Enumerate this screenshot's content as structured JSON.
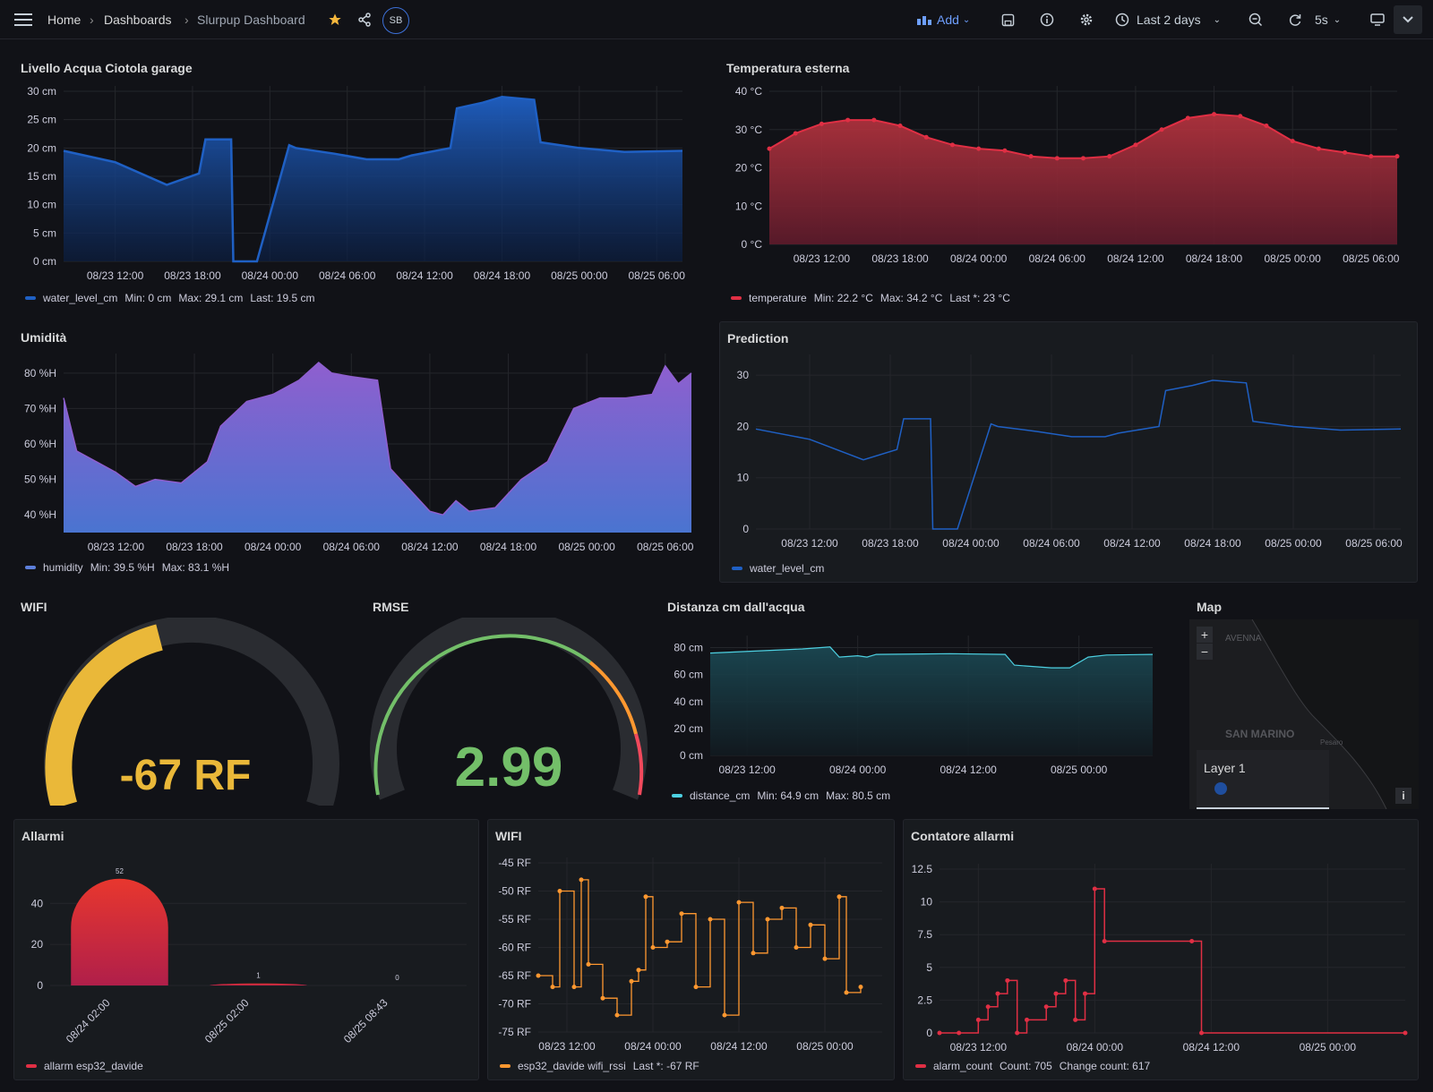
{
  "topbar": {
    "breadcrumb": [
      "Home",
      "Dashboards",
      "Slurpup Dashboard"
    ],
    "avatar": "SB",
    "add_label": "Add",
    "time_range": "Last 2 days",
    "refresh": "5s"
  },
  "panels": {
    "water": {
      "title": "Livello Acqua Ciotola garage",
      "legend": {
        "series": "water_level_cm",
        "stats": [
          "Min: 0 cm",
          "Max: 29.1 cm",
          "Last: 19.5 cm"
        ]
      },
      "color": "#1f60c4"
    },
    "temperature": {
      "title": "Temperatura esterna",
      "legend": {
        "series": "temperature",
        "stats": [
          "Min: 22.2 °C",
          "Max: 34.2 °C",
          "Last *: 23 °C"
        ]
      },
      "color": "#e02f44"
    },
    "humidity": {
      "title": "Umidità",
      "legend": {
        "series": "humidity",
        "stats": [
          "Min: 39.5 %H",
          "Max: 83.1 %H"
        ]
      },
      "color": "#8f5fcf"
    },
    "prediction": {
      "title": "Prediction",
      "legend": {
        "series": "water_level_cm",
        "stats": []
      },
      "color": "#1f60c4"
    },
    "wifi_gauge": {
      "title": "WIFI",
      "value": "-67 RF",
      "color": "#eab839"
    },
    "rmse_gauge": {
      "title": "RMSE",
      "value": "2.99",
      "color": "#73bf69"
    },
    "distance": {
      "title": "Distanza cm dall'acqua",
      "legend": {
        "series": "distance_cm",
        "stats": [
          "Min: 64.9 cm",
          "Max: 80.5 cm"
        ]
      },
      "color": "#4dd0e1"
    },
    "map": {
      "title": "Map",
      "layer_label": "Layer 1",
      "labels": [
        "AVENNA",
        "SAN MARINO",
        "Pesaro"
      ]
    },
    "alarms": {
      "title": "Allarmi",
      "legend": {
        "series": "allarm esp32_davide"
      },
      "color": "#e02f44"
    },
    "wifi_series": {
      "title": "WIFI",
      "legend": {
        "series": "esp32_davide wifi_rssi",
        "stats": [
          "Last *: -67 RF"
        ]
      },
      "color": "#ff9830"
    },
    "alarm_counter": {
      "title": "Contatore allarmi",
      "legend": {
        "series": "alarm_count",
        "stats": [
          "Count: 705",
          "Change count: 617"
        ]
      },
      "color": "#e02f44"
    }
  },
  "chart_data": [
    {
      "id": "water",
      "type": "area",
      "ylabel_ticks": [
        "0 cm",
        "5 cm",
        "10 cm",
        "15 cm",
        "20 cm",
        "25 cm",
        "30 cm"
      ],
      "ylim": [
        0,
        30
      ],
      "x_ticks": [
        "08/23 12:00",
        "08/23 18:00",
        "08/24 00:00",
        "08/24 06:00",
        "08/24 12:00",
        "08/24 18:00",
        "08/25 00:00",
        "08/25 06:00"
      ],
      "x": [
        "08/23 08:00",
        "08/23 12:00",
        "08/23 16:00",
        "08/23 18:30",
        "08/23 19:00",
        "08/23 21:00",
        "08/23 21:10",
        "08/23 23:00",
        "08/24 01:30",
        "08/24 02:00",
        "08/24 05:00",
        "08/24 07:30",
        "08/24 10:00",
        "08/24 11:00",
        "08/24 14:00",
        "08/24 14:30",
        "08/24 16:30",
        "08/24 18:00",
        "08/24 20:30",
        "08/24 21:00",
        "08/25 00:00",
        "08/25 03:30",
        "08/25 08:00"
      ],
      "values": [
        19.5,
        17.5,
        13.5,
        15.5,
        21.5,
        21.5,
        0,
        0,
        20.5,
        20,
        19,
        18,
        18,
        18.7,
        20,
        27,
        28,
        29,
        28.5,
        21,
        20,
        19.3,
        19.5
      ]
    },
    {
      "id": "temperature",
      "type": "area",
      "ylabel_ticks": [
        "0 °C",
        "10 °C",
        "20 °C",
        "30 °C",
        "40 °C"
      ],
      "ylim": [
        0,
        40
      ],
      "x_ticks": [
        "08/23 12:00",
        "08/23 18:00",
        "08/24 00:00",
        "08/24 06:00",
        "08/24 12:00",
        "08/24 18:00",
        "08/25 00:00",
        "08/25 06:00"
      ],
      "x": [
        "08/23 08:00",
        "08/23 10:00",
        "08/23 12:00",
        "08/23 14:00",
        "08/23 16:00",
        "08/23 18:00",
        "08/23 20:00",
        "08/23 22:00",
        "08/24 00:00",
        "08/24 02:00",
        "08/24 04:00",
        "08/24 06:00",
        "08/24 08:00",
        "08/24 10:00",
        "08/24 12:00",
        "08/24 14:00",
        "08/24 16:00",
        "08/24 18:00",
        "08/24 20:00",
        "08/24 22:00",
        "08/25 00:00",
        "08/25 02:00",
        "08/25 04:00",
        "08/25 06:00",
        "08/25 08:00"
      ],
      "values": [
        25,
        29,
        31.5,
        32.5,
        32.5,
        31,
        28,
        26,
        25,
        24.5,
        23,
        22.5,
        22.5,
        23,
        26,
        30,
        33,
        34,
        33.5,
        31,
        27,
        25,
        24,
        23,
        23
      ]
    },
    {
      "id": "humidity",
      "type": "area",
      "ylabel_ticks": [
        "40 %H",
        "50 %H",
        "60 %H",
        "70 %H",
        "80 %H"
      ],
      "ylim": [
        35,
        84
      ],
      "x_ticks": [
        "08/23 12:00",
        "08/23 18:00",
        "08/24 00:00",
        "08/24 06:00",
        "08/24 12:00",
        "08/24 18:00",
        "08/25 00:00",
        "08/25 06:00"
      ],
      "x": [
        "08/23 08:00",
        "08/23 09:00",
        "08/23 10:30",
        "08/23 12:00",
        "08/23 13:30",
        "08/23 15:00",
        "08/23 17:00",
        "08/23 19:00",
        "08/23 20:00",
        "08/23 22:00",
        "08/24 00:00",
        "08/24 02:00",
        "08/24 03:30",
        "08/24 04:30",
        "08/24 06:00",
        "08/24 08:00",
        "08/24 09:00",
        "08/24 10:30",
        "08/24 12:00",
        "08/24 13:00",
        "08/24 14:00",
        "08/24 15:00",
        "08/24 17:00",
        "08/24 19:00",
        "08/24 21:00",
        "08/24 23:00",
        "08/25 01:00",
        "08/25 03:00",
        "08/25 05:00",
        "08/25 06:00",
        "08/25 07:00",
        "08/25 08:00"
      ],
      "values": [
        73,
        58,
        55,
        52,
        48,
        50,
        49,
        55,
        65,
        72,
        74,
        78,
        83,
        80,
        79,
        78,
        53,
        47,
        41,
        40,
        44,
        41,
        42,
        50,
        55,
        70,
        73,
        73,
        74,
        82,
        77,
        80
      ]
    },
    {
      "id": "prediction",
      "type": "line",
      "ylabel_ticks": [
        "0",
        "10",
        "20",
        "30"
      ],
      "ylim": [
        0,
        33
      ],
      "x_ticks": [
        "08/23 12:00",
        "08/23 18:00",
        "08/24 00:00",
        "08/24 06:00",
        "08/24 12:00",
        "08/24 18:00",
        "08/25 00:00",
        "08/25 06:00"
      ],
      "x": [
        "08/23 08:00",
        "08/23 12:00",
        "08/23 16:00",
        "08/23 18:30",
        "08/23 19:00",
        "08/23 21:00",
        "08/23 21:10",
        "08/23 23:00",
        "08/24 01:30",
        "08/24 02:00",
        "08/24 05:00",
        "08/24 07:30",
        "08/24 10:00",
        "08/24 11:00",
        "08/24 14:00",
        "08/24 14:30",
        "08/24 16:30",
        "08/24 18:00",
        "08/24 20:30",
        "08/24 21:00",
        "08/25 00:00",
        "08/25 03:30",
        "08/25 08:00"
      ],
      "values": [
        19.5,
        17.5,
        13.5,
        15.5,
        21.5,
        21.5,
        0,
        0,
        20.5,
        20,
        19,
        18,
        18,
        18.7,
        20,
        27,
        28,
        29,
        28.5,
        21,
        20,
        19.3,
        19.5
      ]
    },
    {
      "id": "distance",
      "type": "area",
      "ylabel_ticks": [
        "0 cm",
        "20 cm",
        "40 cm",
        "60 cm",
        "80 cm"
      ],
      "ylim": [
        0,
        85
      ],
      "x_ticks": [
        "08/23 12:00",
        "08/24 00:00",
        "08/24 12:00",
        "08/25 00:00"
      ],
      "x": [
        "08/23 08:00",
        "08/23 18:00",
        "08/23 21:00",
        "08/23 22:00",
        "08/24 00:00",
        "08/24 01:00",
        "08/24 02:00",
        "08/24 10:00",
        "08/24 16:00",
        "08/24 17:00",
        "08/24 21:00",
        "08/24 23:00",
        "08/25 01:00",
        "08/25 03:00",
        "08/25 08:00"
      ],
      "values": [
        76,
        79,
        80.5,
        73,
        74,
        73,
        75,
        75.5,
        75,
        67,
        65,
        65,
        73,
        74.5,
        75
      ]
    },
    {
      "id": "alarms",
      "type": "bar",
      "categories": [
        "08/24 02:00",
        "08/25 02:00",
        "08/25 08:43"
      ],
      "values": [
        52,
        1,
        0
      ],
      "ylabel_ticks": [
        "0",
        "20",
        "40"
      ],
      "ylim": [
        0,
        58
      ]
    },
    {
      "id": "wifi_series",
      "type": "line",
      "ylabel_ticks": [
        "-75 RF",
        "-70 RF",
        "-65 RF",
        "-60 RF",
        "-55 RF",
        "-50 RF",
        "-45 RF"
      ],
      "ylim": [
        -75,
        -45
      ],
      "x_ticks": [
        "08/23 12:00",
        "08/24 00:00",
        "08/24 12:00",
        "08/25 00:00"
      ],
      "x": [
        "08/23 08:00",
        "08/23 10:00",
        "08/23 11:00",
        "08/23 13:00",
        "08/23 14:00",
        "08/23 15:00",
        "08/23 17:00",
        "08/23 19:00",
        "08/23 21:00",
        "08/23 22:00",
        "08/23 23:00",
        "08/24 00:00",
        "08/24 02:00",
        "08/24 04:00",
        "08/24 06:00",
        "08/24 08:00",
        "08/24 10:00",
        "08/24 12:00",
        "08/24 14:00",
        "08/24 16:00",
        "08/24 18:00",
        "08/24 20:00",
        "08/24 22:00",
        "08/25 00:00",
        "08/25 02:00",
        "08/25 03:00",
        "08/25 05:00"
      ],
      "values": [
        -65,
        -67,
        -50,
        -67,
        -48,
        -63,
        -69,
        -72,
        -66,
        -64,
        -51,
        -60,
        -59,
        -54,
        -67,
        -55,
        -72,
        -52,
        -61,
        -55,
        -53,
        -60,
        -56,
        -62,
        -51,
        -68,
        -67
      ]
    },
    {
      "id": "alarm_counter",
      "type": "line",
      "ylabel_ticks": [
        "0",
        "2.5",
        "5",
        "7.5",
        "10",
        "12.5"
      ],
      "ylim": [
        0,
        12.5
      ],
      "x_ticks": [
        "08/23 12:00",
        "08/24 00:00",
        "08/24 12:00",
        "08/25 00:00"
      ],
      "x": [
        "08/23 08:00",
        "08/23 10:00",
        "08/23 12:00",
        "08/23 13:00",
        "08/23 14:00",
        "08/23 15:00",
        "08/23 16:00",
        "08/23 17:00",
        "08/23 19:00",
        "08/23 20:00",
        "08/23 21:00",
        "08/23 22:00",
        "08/23 23:00",
        "08/24 00:00",
        "08/24 01:00",
        "08/24 10:00",
        "08/24 11:00",
        "08/25 08:00"
      ],
      "values": [
        0,
        0,
        1,
        2,
        3,
        4,
        0,
        1,
        2,
        3,
        4,
        1,
        3,
        11,
        7,
        7,
        0,
        0
      ]
    }
  ]
}
